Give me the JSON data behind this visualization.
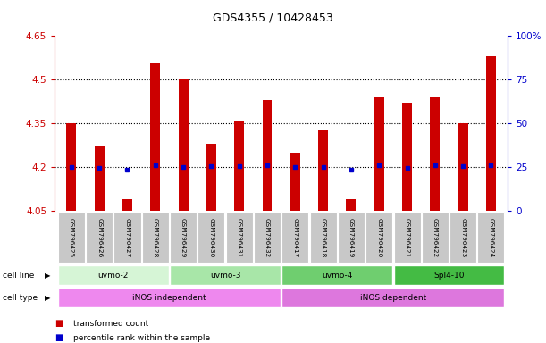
{
  "title": "GDS4355 / 10428453",
  "samples": [
    "GSM796425",
    "GSM796426",
    "GSM796427",
    "GSM796428",
    "GSM796429",
    "GSM796430",
    "GSM796431",
    "GSM796432",
    "GSM796417",
    "GSM796418",
    "GSM796419",
    "GSM796420",
    "GSM796421",
    "GSM796422",
    "GSM796423",
    "GSM796424"
  ],
  "transformed_count": [
    4.35,
    4.27,
    4.09,
    4.56,
    4.5,
    4.28,
    4.36,
    4.43,
    4.25,
    4.33,
    4.09,
    4.44,
    4.42,
    4.44,
    4.35,
    4.58
  ],
  "percentile_rank": [
    4.202,
    4.198,
    4.19,
    4.208,
    4.202,
    4.203,
    4.205,
    4.206,
    4.2,
    4.2,
    4.19,
    4.207,
    4.197,
    4.206,
    4.205,
    4.208
  ],
  "base_value": 4.05,
  "ylim_left": [
    4.05,
    4.65
  ],
  "ylim_right": [
    0,
    100
  ],
  "yticks_left": [
    4.05,
    4.2,
    4.35,
    4.5,
    4.65
  ],
  "ytick_labels_left": [
    "4.05",
    "4.2",
    "4.35",
    "4.5",
    "4.65"
  ],
  "yticks_right": [
    0,
    25,
    50,
    75,
    100
  ],
  "ytick_labels_right": [
    "0",
    "25",
    "50",
    "75",
    "100%"
  ],
  "hlines": [
    4.2,
    4.35,
    4.5
  ],
  "cell_line_groups": [
    {
      "label": "uvmo-2",
      "start": 0,
      "end": 3,
      "color": "#d6f5d6"
    },
    {
      "label": "uvmo-3",
      "start": 4,
      "end": 7,
      "color": "#a8e6a8"
    },
    {
      "label": "uvmo-4",
      "start": 8,
      "end": 11,
      "color": "#6fce6f"
    },
    {
      "label": "Spl4-10",
      "start": 12,
      "end": 15,
      "color": "#44bb44"
    }
  ],
  "cell_type_groups": [
    {
      "label": "iNOS independent",
      "start": 0,
      "end": 7,
      "color": "#ee88ee"
    },
    {
      "label": "iNOS dependent",
      "start": 8,
      "end": 15,
      "color": "#dd77dd"
    }
  ],
  "bar_color": "#cc0000",
  "percentile_color": "#0000cc",
  "left_axis_color": "#cc0000",
  "right_axis_color": "#0000cc",
  "tick_label_bg": "#c8c8c8",
  "title_fontsize": 9,
  "legend_items": [
    {
      "color": "#cc0000",
      "label": "transformed count"
    },
    {
      "color": "#0000cc",
      "label": "percentile rank within the sample"
    }
  ]
}
